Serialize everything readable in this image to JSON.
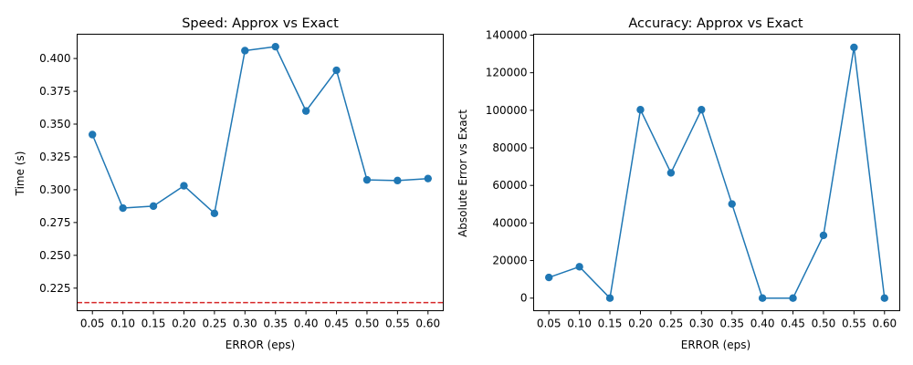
{
  "chart_data": [
    {
      "type": "line",
      "title": "Speed: Approx vs Exact",
      "xlabel": "ERROR (eps)",
      "ylabel": "Time (s)",
      "x": [
        0.05,
        0.1,
        0.15,
        0.2,
        0.25,
        0.3,
        0.35,
        0.4,
        0.45,
        0.5,
        0.55,
        0.6
      ],
      "x_tick_labels": [
        "0.05",
        "0.10",
        "0.15",
        "0.20",
        "0.25",
        "0.30",
        "0.35",
        "0.40",
        "0.45",
        "0.50",
        "0.55",
        "0.60"
      ],
      "y_ticks": [
        0.225,
        0.25,
        0.275,
        0.3,
        0.325,
        0.35,
        0.375,
        0.4
      ],
      "y_tick_labels": [
        "0.225",
        "0.250",
        "0.275",
        "0.300",
        "0.325",
        "0.350",
        "0.375",
        "0.400"
      ],
      "xlim": [
        0.025,
        0.625
      ],
      "ylim": [
        0.2078,
        0.4185
      ],
      "series": [
        {
          "values": [
            0.342,
            0.286,
            0.2875,
            0.303,
            0.282,
            0.406,
            0.409,
            0.36,
            0.391,
            0.3075,
            0.307,
            0.3085
          ],
          "color": "#1f77b4",
          "marker": "circle"
        }
      ],
      "reference_line": {
        "y": 0.214,
        "color": "#d62728",
        "style": "dashed"
      },
      "grid": false,
      "legend": "none"
    },
    {
      "type": "line",
      "title": "Accuracy: Approx vs Exact",
      "xlabel": "ERROR (eps)",
      "ylabel": "Absolute Error vs Exact",
      "x": [
        0.05,
        0.1,
        0.15,
        0.2,
        0.25,
        0.3,
        0.35,
        0.4,
        0.45,
        0.5,
        0.55,
        0.6
      ],
      "x_tick_labels": [
        "0.05",
        "0.10",
        "0.15",
        "0.20",
        "0.25",
        "0.30",
        "0.35",
        "0.40",
        "0.45",
        "0.50",
        "0.55",
        "0.60"
      ],
      "y_ticks": [
        0,
        20000,
        40000,
        60000,
        80000,
        100000,
        120000,
        140000
      ],
      "y_tick_labels": [
        "0",
        "20000",
        "40000",
        "60000",
        "80000",
        "100000",
        "120000",
        "140000"
      ],
      "xlim": [
        0.025,
        0.625
      ],
      "ylim": [
        -6700,
        140500
      ],
      "series": [
        {
          "values": [
            11000,
            16700,
            0,
            100300,
            66700,
            100300,
            50100,
            0,
            0,
            33400,
            133500,
            0
          ],
          "color": "#1f77b4",
          "marker": "circle"
        }
      ],
      "grid": false,
      "legend": "none"
    }
  ]
}
